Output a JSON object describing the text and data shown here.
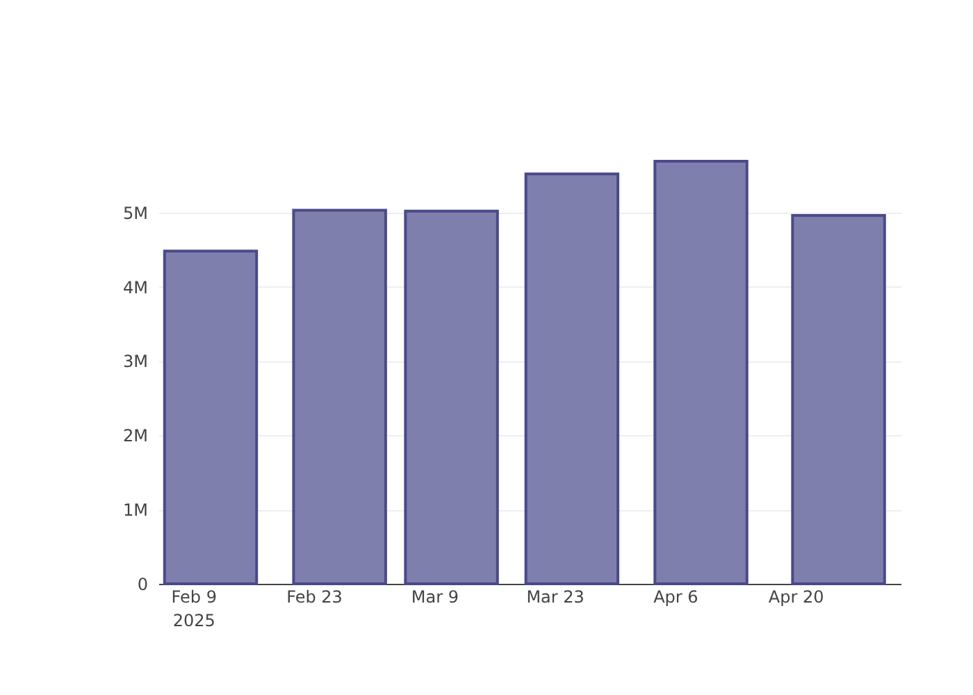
{
  "chart_data": {
    "type": "bar",
    "x": [
      "2025-02-11",
      "2025-02-26",
      "2025-03-11",
      "2025-03-25",
      "2025-04-09",
      "2025-04-25"
    ],
    "values": [
      4.48,
      5.03,
      5.02,
      5.52,
      5.69,
      4.96
    ],
    "color": "#7f7fae",
    "xlim": [
      "2025-02-05T18:00",
      "2025-05-01T10:00"
    ],
    "xticks": [
      {
        "value": "2025-02-09",
        "label": "Feb 9\n2025"
      },
      {
        "value": "2025-02-23",
        "label": "Feb 23"
      },
      {
        "value": "2025-03-09",
        "label": "Mar 9"
      },
      {
        "value": "2025-03-23",
        "label": "Mar 23"
      },
      {
        "value": "2025-04-06",
        "label": "Apr 6"
      },
      {
        "value": "2025-04-20",
        "label": "Apr 20"
      }
    ],
    "ylim": [
      0,
      5.99
    ],
    "yticks": [
      {
        "value": 0,
        "label": "0"
      },
      {
        "value": 1,
        "label": "1M"
      },
      {
        "value": 2,
        "label": "2M"
      },
      {
        "value": 3,
        "label": "3M"
      },
      {
        "value": 4,
        "label": "4M"
      },
      {
        "value": 5,
        "label": "5M"
      }
    ],
    "grid": "y"
  }
}
